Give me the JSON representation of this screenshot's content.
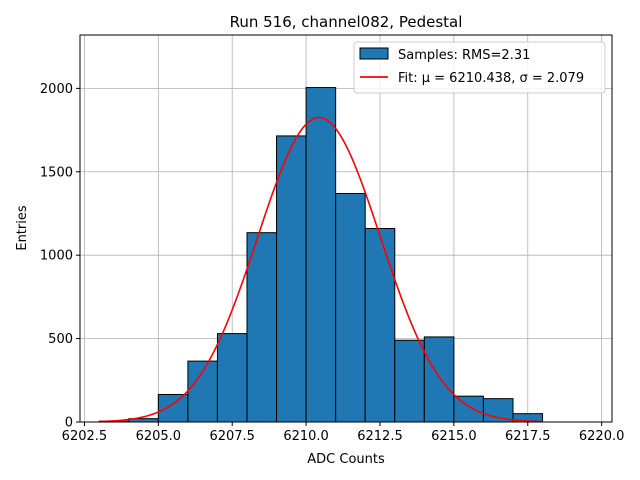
{
  "chart_data": {
    "type": "bar",
    "title": "Run 516, channel082, Pedestal",
    "xlabel": "ADC Counts",
    "ylabel": "Entries",
    "xlim": [
      6202.35,
      6220.35
    ],
    "ylim": [
      0,
      2320
    ],
    "xticks": [
      6202.5,
      6205.0,
      6207.5,
      6210.0,
      6212.5,
      6215.0,
      6217.5,
      6220.0
    ],
    "xtick_labels": [
      "6202.5",
      "6205.0",
      "6207.5",
      "6210.0",
      "6212.5",
      "6215.0",
      "6217.5",
      "6220.0"
    ],
    "yticks": [
      0,
      500,
      1000,
      1500,
      2000
    ],
    "ytick_labels": [
      "0",
      "500",
      "1000",
      "1500",
      "2000"
    ],
    "grid": true,
    "histogram": {
      "name": "Samples: RMS=2.31",
      "color": "#1f77b4",
      "edgecolor": "#000000",
      "bins": [
        {
          "x0": 6203,
          "x1": 6204,
          "count": 5
        },
        {
          "x0": 6204,
          "x1": 6205,
          "count": 20
        },
        {
          "x0": 6205,
          "x1": 6206,
          "count": 165
        },
        {
          "x0": 6206,
          "x1": 6207,
          "count": 365
        },
        {
          "x0": 6207,
          "x1": 6208,
          "count": 530
        },
        {
          "x0": 6208,
          "x1": 6209,
          "count": 1135
        },
        {
          "x0": 6209,
          "x1": 6210,
          "count": 1715
        },
        {
          "x0": 6210,
          "x1": 6211,
          "count": 2005
        },
        {
          "x0": 6211,
          "x1": 6212,
          "count": 1370
        },
        {
          "x0": 6212,
          "x1": 6213,
          "count": 1160
        },
        {
          "x0": 6213,
          "x1": 6214,
          "count": 490
        },
        {
          "x0": 6214,
          "x1": 6215,
          "count": 510
        },
        {
          "x0": 6215,
          "x1": 6216,
          "count": 155
        },
        {
          "x0": 6216,
          "x1": 6217,
          "count": 140
        },
        {
          "x0": 6217,
          "x1": 6218,
          "count": 50
        }
      ]
    },
    "fit": {
      "name": "Fit: μ = 6210.438, σ = 2.079",
      "color": "#ff0000",
      "mu": 6210.438,
      "sigma": 2.079,
      "amplitude": 1825,
      "x_range": [
        6203,
        6218
      ]
    },
    "legend_position": "top-right"
  }
}
